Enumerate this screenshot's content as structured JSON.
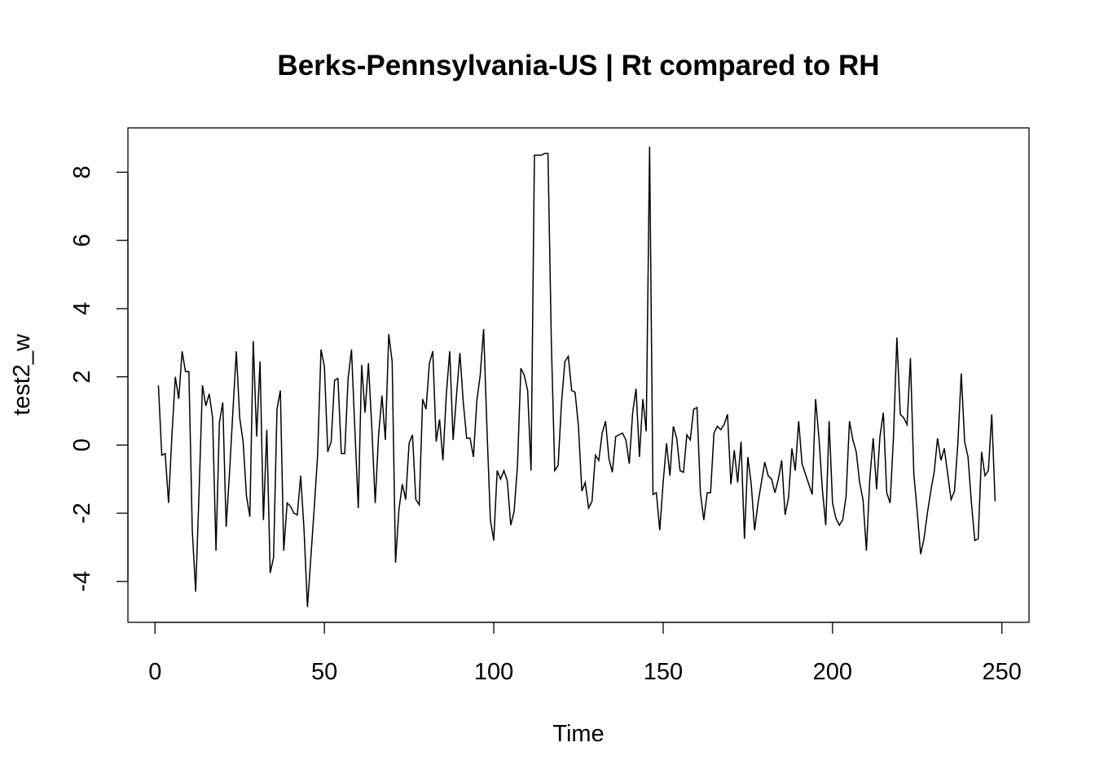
{
  "chart_data": {
    "type": "line",
    "title": "Berks-Pennsylvania-US | Rt compared to RH",
    "xlabel": "Time",
    "ylabel": "test2_w",
    "xlim": [
      -8,
      258
    ],
    "ylim": [
      -5.2,
      9.3
    ],
    "x_ticks": [
      0,
      50,
      100,
      150,
      200,
      250
    ],
    "y_ticks": [
      -4,
      -2,
      0,
      2,
      4,
      6,
      8
    ],
    "grid": false,
    "legend": "none",
    "line_color": "#000000",
    "series": [
      {
        "x_start": 1,
        "values": [
          1.75,
          -0.3,
          -0.25,
          -1.7,
          0.3,
          2.0,
          1.35,
          2.75,
          2.15,
          2.15,
          -2.5,
          -4.3,
          -1.4,
          1.75,
          1.15,
          1.5,
          0.8,
          -3.1,
          0.65,
          1.25,
          -2.4,
          -0.8,
          1.0,
          2.75,
          0.8,
          0.1,
          -1.5,
          -2.1,
          3.05,
          0.25,
          2.45,
          -2.2,
          0.45,
          -3.75,
          -3.3,
          1.05,
          1.6,
          -3.1,
          -1.7,
          -1.8,
          -2.0,
          -2.05,
          -0.9,
          -2.5,
          -4.75,
          -3.3,
          -1.85,
          -0.3,
          2.8,
          2.3,
          -0.2,
          0.1,
          1.9,
          1.95,
          -0.25,
          -0.25,
          1.95,
          2.8,
          0.45,
          -1.85,
          2.35,
          0.95,
          2.4,
          0.5,
          -1.7,
          0.3,
          1.45,
          0.15,
          3.25,
          2.45,
          -3.45,
          -1.9,
          -1.15,
          -1.6,
          0.05,
          0.3,
          -1.6,
          -1.75,
          1.35,
          1.05,
          2.4,
          2.75,
          0.1,
          0.75,
          -0.45,
          1.5,
          2.75,
          0.15,
          1.45,
          2.7,
          1.25,
          0.2,
          0.2,
          -0.35,
          1.3,
          2.05,
          3.4,
          0.45,
          -2.2,
          -2.8,
          -0.75,
          -1.0,
          -0.75,
          -1.05,
          -2.35,
          -1.95,
          -0.6,
          2.25,
          2.05,
          1.6,
          -0.75,
          8.5,
          8.5,
          8.5,
          8.55,
          8.55,
          3.0,
          -0.75,
          -0.6,
          1.25,
          2.45,
          2.6,
          1.6,
          1.55,
          0.55,
          -1.35,
          -1.1,
          -1.85,
          -1.65,
          -0.3,
          -0.45,
          0.35,
          0.7,
          -0.4,
          -0.8,
          0.25,
          0.3,
          0.35,
          0.15,
          -0.55,
          0.95,
          1.65,
          -0.35,
          1.35,
          0.4,
          8.75,
          -1.45,
          -1.4,
          -2.5,
          -1.1,
          0.05,
          -0.9,
          0.55,
          0.2,
          -0.75,
          -0.8,
          0.3,
          0.15,
          1.05,
          1.1,
          -1.4,
          -2.2,
          -1.4,
          -1.4,
          0.35,
          0.55,
          0.45,
          0.6,
          0.9,
          -1.15,
          -0.15,
          -1.1,
          0.1,
          -2.75,
          -0.35,
          -1.15,
          -2.5,
          -1.7,
          -1.1,
          -0.5,
          -0.9,
          -1.0,
          -1.4,
          -1.0,
          -0.45,
          -2.05,
          -1.55,
          -0.1,
          -0.75,
          0.7,
          -0.55,
          -0.85,
          -1.15,
          -1.45,
          1.35,
          0.2,
          -1.3,
          -2.35,
          0.7,
          -1.7,
          -2.15,
          -2.35,
          -2.2,
          -1.5,
          0.7,
          0.15,
          -0.2,
          -1.1,
          -1.6,
          -3.1,
          -1.0,
          0.2,
          -1.3,
          0.25,
          0.95,
          -1.4,
          -1.7,
          0.25,
          3.15,
          0.9,
          0.8,
          0.6,
          2.55,
          -0.85,
          -1.95,
          -3.2,
          -2.75,
          -2.0,
          -1.35,
          -0.8,
          0.2,
          -0.45,
          -0.1,
          -0.85,
          -1.6,
          -1.35,
          0.05,
          2.1,
          0.1,
          -0.35,
          -1.7,
          -2.8,
          -2.75,
          -0.2,
          -0.9,
          -0.75,
          0.9,
          -1.65
        ]
      }
    ]
  }
}
